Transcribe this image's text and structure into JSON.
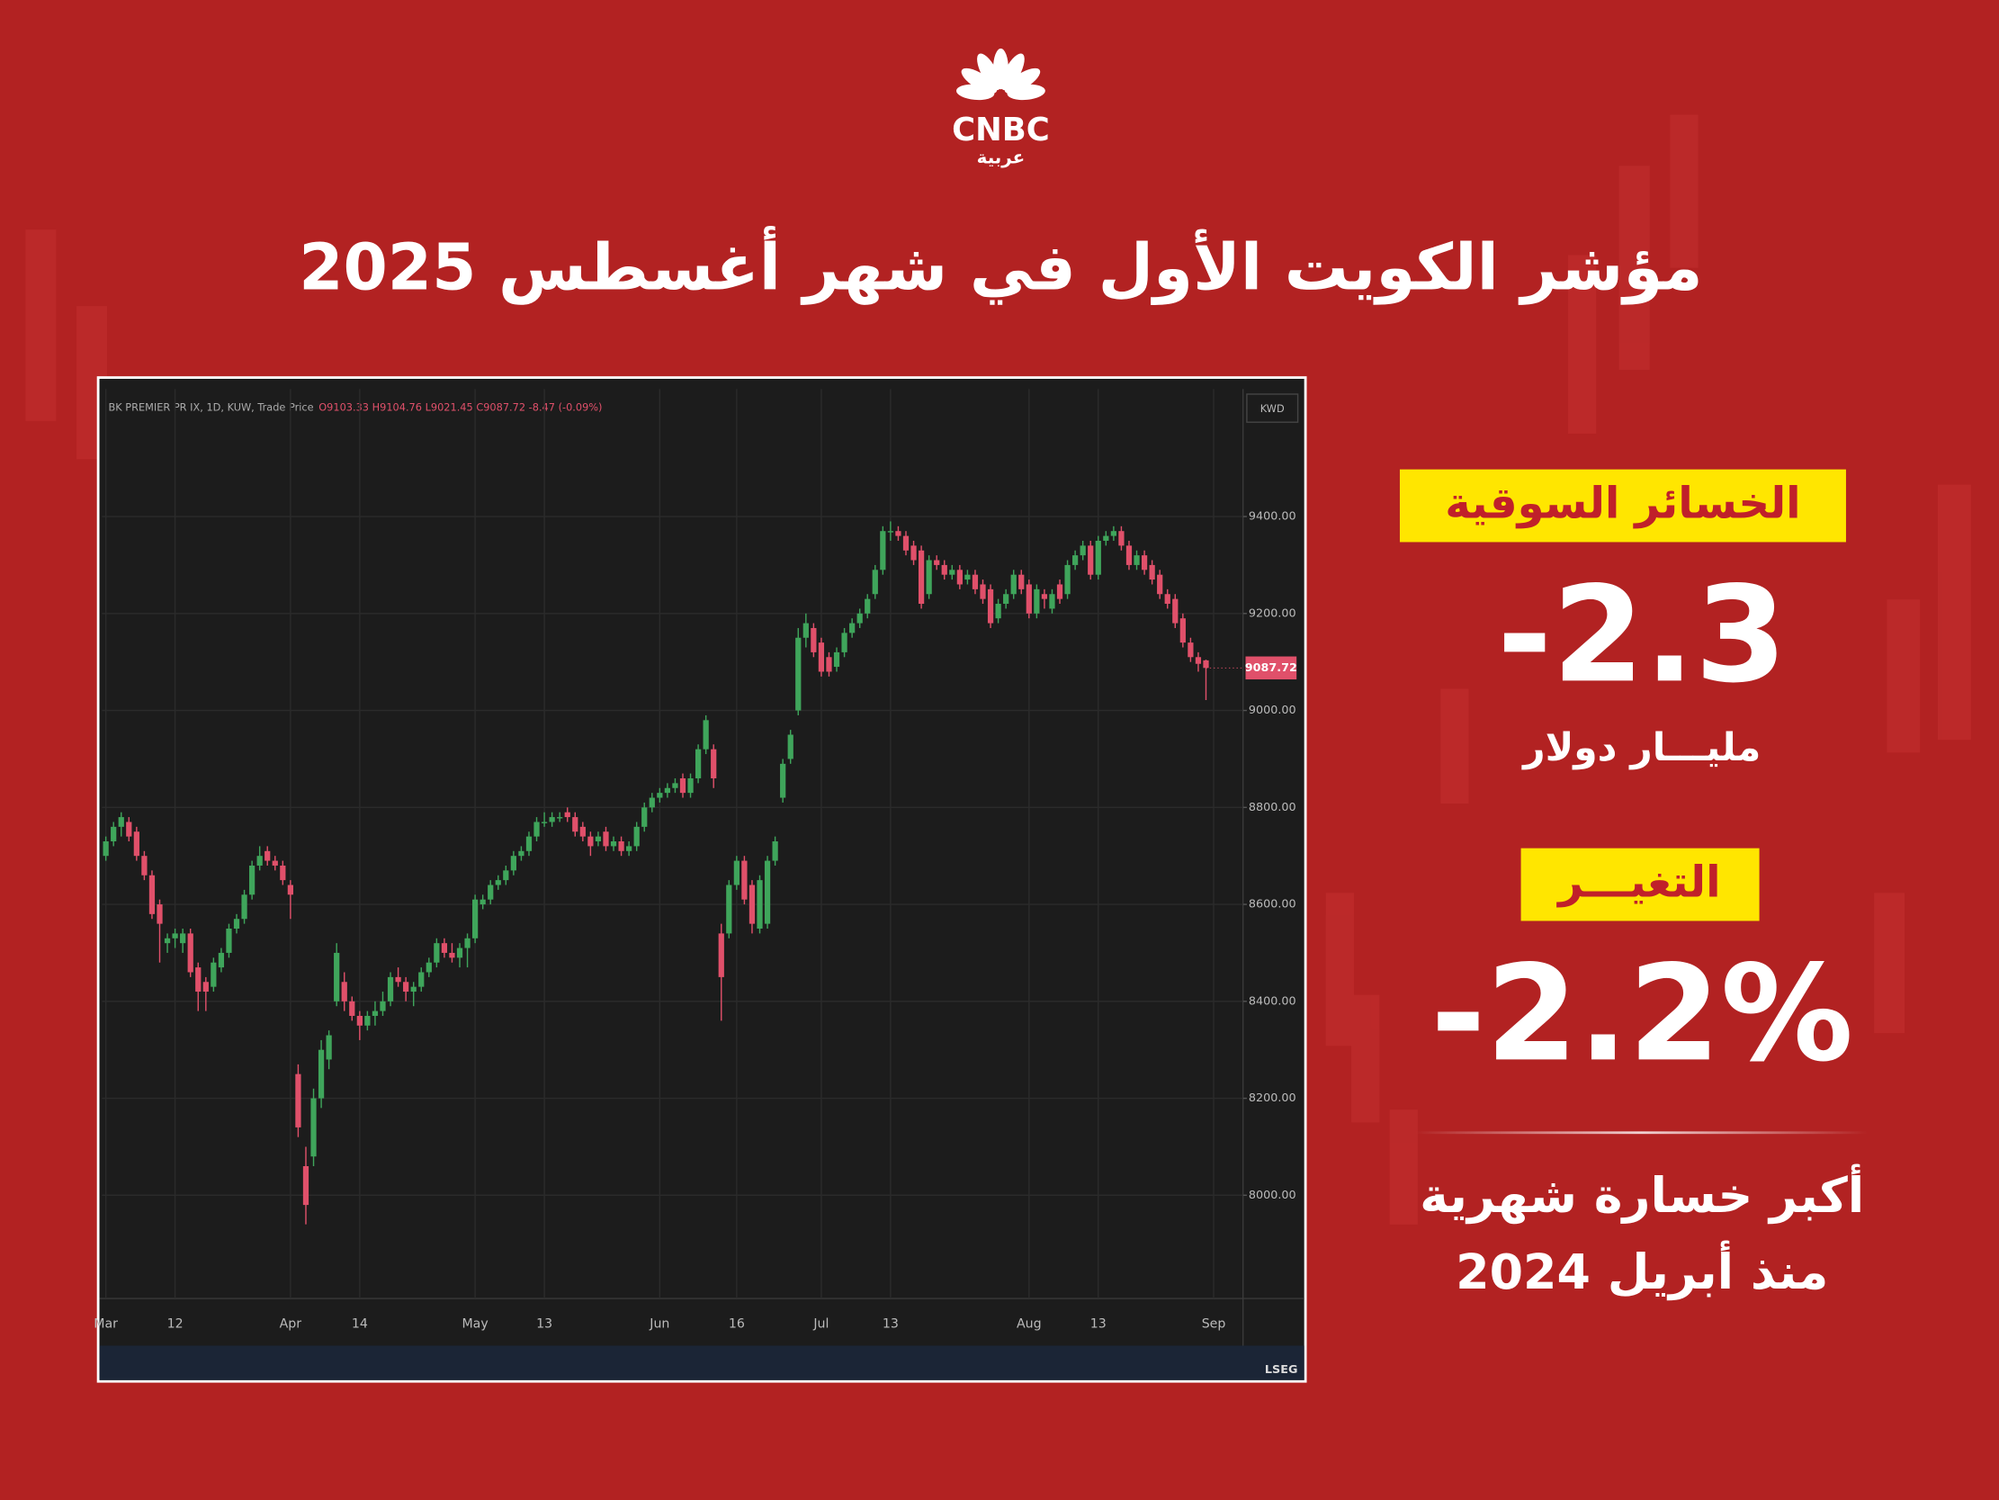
{
  "logo": {
    "brand": "CNBC",
    "sub": "عربية"
  },
  "title": "مؤشر الكويت الأول في شهر أغسطس 2025",
  "stats": [
    {
      "label": "الخسائر السوقية",
      "value": "-2.3",
      "unit": "مليـــار دولار"
    },
    {
      "label": "التغيـــر",
      "value": "-2.2%"
    }
  ],
  "note": [
    "أكبر خسارة شهرية",
    "منذ أبريل 2024"
  ],
  "chart_data": {
    "type": "candlestick",
    "instrument": "BK PREMIER PR IX, 1D, KUW, Trade Price",
    "ohlc_label": "O9103.33 H9104.76 L9021.45 C9087.72 -8.47 (-0.09%)",
    "currency": "KWD",
    "source": "LSEG",
    "up_color": "#3fa55b",
    "down_color": "#e0506a",
    "grid": true,
    "ylim": [
      7795,
      9663
    ],
    "yticks": [
      {
        "value": 8000,
        "label": "8000.00"
      },
      {
        "value": 8200,
        "label": "8200.00"
      },
      {
        "value": 8400,
        "label": "8400.00"
      },
      {
        "value": 8600,
        "label": "8600.00"
      },
      {
        "value": 8800,
        "label": "8800.00"
      },
      {
        "value": 9000,
        "label": "9000.00"
      },
      {
        "value": 9200,
        "label": "9200.00"
      },
      {
        "value": 9400,
        "label": "9400.00"
      }
    ],
    "categories": [
      "Mar",
      null,
      null,
      null,
      null,
      null,
      null,
      null,
      null,
      "12",
      null,
      null,
      null,
      null,
      null,
      null,
      null,
      null,
      null,
      null,
      null,
      null,
      null,
      null,
      "Apr",
      null,
      null,
      null,
      null,
      null,
      null,
      null,
      null,
      "14",
      null,
      null,
      null,
      null,
      null,
      null,
      null,
      null,
      null,
      null,
      null,
      null,
      null,
      null,
      "May",
      null,
      null,
      null,
      null,
      null,
      null,
      null,
      null,
      "13",
      null,
      null,
      null,
      null,
      null,
      null,
      null,
      null,
      null,
      null,
      null,
      null,
      null,
      null,
      "Jun",
      null,
      null,
      null,
      null,
      null,
      null,
      null,
      null,
      null,
      "16",
      null,
      null,
      null,
      null,
      null,
      null,
      null,
      null,
      null,
      null,
      "Jul",
      null,
      null,
      null,
      null,
      null,
      null,
      null,
      null,
      "13",
      null,
      null,
      null,
      null,
      null,
      null,
      null,
      null,
      null,
      null,
      null,
      null,
      null,
      null,
      null,
      null,
      null,
      "Aug",
      null,
      null,
      null,
      null,
      null,
      null,
      null,
      null,
      "13",
      null,
      null,
      null,
      null,
      null,
      null,
      null,
      null,
      null,
      null,
      null,
      null,
      null,
      null,
      "Sep"
    ],
    "open": [
      8700,
      8730,
      8760,
      8770,
      8750,
      8700,
      8660,
      8600,
      8520,
      8530,
      8520,
      8540,
      8470,
      8440,
      8430,
      8470,
      8500,
      8550,
      8570,
      8620,
      8680,
      8710,
      8690,
      8680,
      8640,
      8250,
      8060,
      8080,
      8200,
      8280,
      8400,
      8440,
      8400,
      8370,
      8350,
      8370,
      8380,
      8400,
      8450,
      8440,
      8420,
      8430,
      8460,
      8480,
      8520,
      8500,
      8490,
      8510,
      8530,
      8600,
      8610,
      8640,
      8650,
      8670,
      8700,
      8710,
      8740,
      8770,
      8770,
      8780,
      8790,
      8780,
      8760,
      8740,
      8730,
      8750,
      8720,
      8730,
      8710,
      8720,
      8760,
      8800,
      8820,
      8830,
      8840,
      8860,
      8830,
      8860,
      8920,
      8920,
      8540,
      8540,
      8640,
      8690,
      8640,
      8550,
      8560,
      8690,
      8820,
      8900,
      9000,
      9150,
      9170,
      9140,
      9110,
      9090,
      9120,
      9160,
      9180,
      9200,
      9240,
      9290,
      9370,
      9370,
      9360,
      9340,
      9330,
      9240,
      9310,
      9300,
      9280,
      9290,
      9270,
      9280,
      9260,
      9250,
      9190,
      9220,
      9240,
      9280,
      9260,
      9200,
      9240,
      9210,
      9260,
      9240,
      9300,
      9320,
      9340,
      9280,
      9350,
      9360,
      9370,
      9340,
      9300,
      9320,
      9300,
      9280,
      9240,
      9230,
      9190,
      9140,
      9110,
      9103.33,
      null
    ],
    "high": [
      8740,
      8770,
      8790,
      8780,
      8760,
      8710,
      8670,
      8610,
      8540,
      8550,
      8550,
      8550,
      8480,
      8450,
      8490,
      8510,
      8560,
      8580,
      8630,
      8690,
      8720,
      8720,
      8700,
      8690,
      8650,
      8270,
      8100,
      8220,
      8320,
      8340,
      8520,
      8460,
      8410,
      8380,
      8380,
      8400,
      8420,
      8460,
      8470,
      8450,
      8440,
      8470,
      8490,
      8530,
      8530,
      8520,
      8520,
      8540,
      8620,
      8620,
      8650,
      8660,
      8680,
      8710,
      8720,
      8750,
      8780,
      8790,
      8790,
      8790,
      8800,
      8790,
      8770,
      8750,
      8750,
      8760,
      8740,
      8740,
      8730,
      8770,
      8810,
      8830,
      8840,
      8850,
      8860,
      8870,
      8870,
      8930,
      8990,
      8930,
      8560,
      8650,
      8700,
      8700,
      8650,
      8660,
      8700,
      8740,
      8900,
      8960,
      9170,
      9200,
      9180,
      9150,
      9120,
      9130,
      9170,
      9190,
      9210,
      9240,
      9300,
      9380,
      9390,
      9380,
      9370,
      9350,
      9340,
      9320,
      9320,
      9310,
      9300,
      9300,
      9290,
      9290,
      9270,
      9260,
      9230,
      9250,
      9290,
      9290,
      9270,
      9260,
      9250,
      9250,
      9270,
      9310,
      9330,
      9350,
      9350,
      9360,
      9370,
      9380,
      9380,
      9350,
      9330,
      9330,
      9310,
      9290,
      9250,
      9240,
      9200,
      9150,
      9120,
      9104.76,
      null
    ],
    "low": [
      8690,
      8720,
      8740,
      8730,
      8690,
      8650,
      8570,
      8480,
      8500,
      8510,
      8500,
      8450,
      8380,
      8380,
      8420,
      8460,
      8490,
      8540,
      8560,
      8610,
      8670,
      8680,
      8670,
      8640,
      8570,
      8120,
      7940,
      8060,
      8180,
      8260,
      8390,
      8380,
      8360,
      8320,
      8340,
      8350,
      8370,
      8390,
      8430,
      8400,
      8390,
      8420,
      8450,
      8470,
      8490,
      8480,
      8470,
      8470,
      8520,
      8590,
      8600,
      8630,
      8640,
      8660,
      8690,
      8700,
      8730,
      8760,
      8760,
      8770,
      8770,
      8740,
      8730,
      8700,
      8720,
      8710,
      8710,
      8700,
      8700,
      8710,
      8750,
      8790,
      8810,
      8820,
      8830,
      8820,
      8820,
      8850,
      8910,
      8840,
      8360,
      8530,
      8630,
      8600,
      8540,
      8540,
      8550,
      8680,
      8810,
      8890,
      8990,
      9130,
      9110,
      9070,
      9070,
      9080,
      9110,
      9150,
      9170,
      9190,
      9230,
      9280,
      9350,
      9350,
      9320,
      9300,
      9210,
      9230,
      9290,
      9270,
      9270,
      9250,
      9260,
      9240,
      9220,
      9170,
      9180,
      9210,
      9230,
      9240,
      9190,
      9190,
      9210,
      9200,
      9220,
      9230,
      9290,
      9310,
      9270,
      9270,
      9340,
      9350,
      9330,
      9290,
      9290,
      9280,
      9260,
      9230,
      9210,
      9170,
      9130,
      9100,
      9080,
      9021.45,
      null
    ],
    "close": [
      8730,
      8760,
      8780,
      8740,
      8700,
      8660,
      8580,
      8560,
      8530,
      8540,
      8540,
      8460,
      8420,
      8420,
      8480,
      8500,
      8550,
      8570,
      8620,
      8680,
      8700,
      8690,
      8680,
      8650,
      8620,
      8140,
      7980,
      8200,
      8300,
      8330,
      8500,
      8400,
      8370,
      8350,
      8370,
      8380,
      8400,
      8450,
      8440,
      8420,
      8430,
      8460,
      8480,
      8520,
      8500,
      8490,
      8510,
      8530,
      8610,
      8610,
      8640,
      8650,
      8670,
      8700,
      8710,
      8740,
      8770,
      8770,
      8780,
      8780,
      8780,
      8750,
      8740,
      8720,
      8740,
      8720,
      8730,
      8710,
      8720,
      8760,
      8800,
      8820,
      8830,
      8840,
      8850,
      8830,
      8860,
      8920,
      8980,
      8860,
      8450,
      8640,
      8690,
      8610,
      8560,
      8650,
      8690,
      8730,
      8890,
      8950,
      9150,
      9180,
      9120,
      9080,
      9080,
      9120,
      9160,
      9180,
      9200,
      9230,
      9290,
      9370,
      9370,
      9360,
      9330,
      9310,
      9220,
      9310,
      9300,
      9280,
      9290,
      9260,
      9280,
      9250,
      9230,
      9180,
      9220,
      9240,
      9280,
      9250,
      9200,
      9250,
      9230,
      9240,
      9230,
      9300,
      9320,
      9340,
      9280,
      9350,
      9360,
      9370,
      9340,
      9300,
      9320,
      9290,
      9270,
      9240,
      9220,
      9180,
      9140,
      9110,
      9096.19,
      9087.72,
      null
    ]
  }
}
